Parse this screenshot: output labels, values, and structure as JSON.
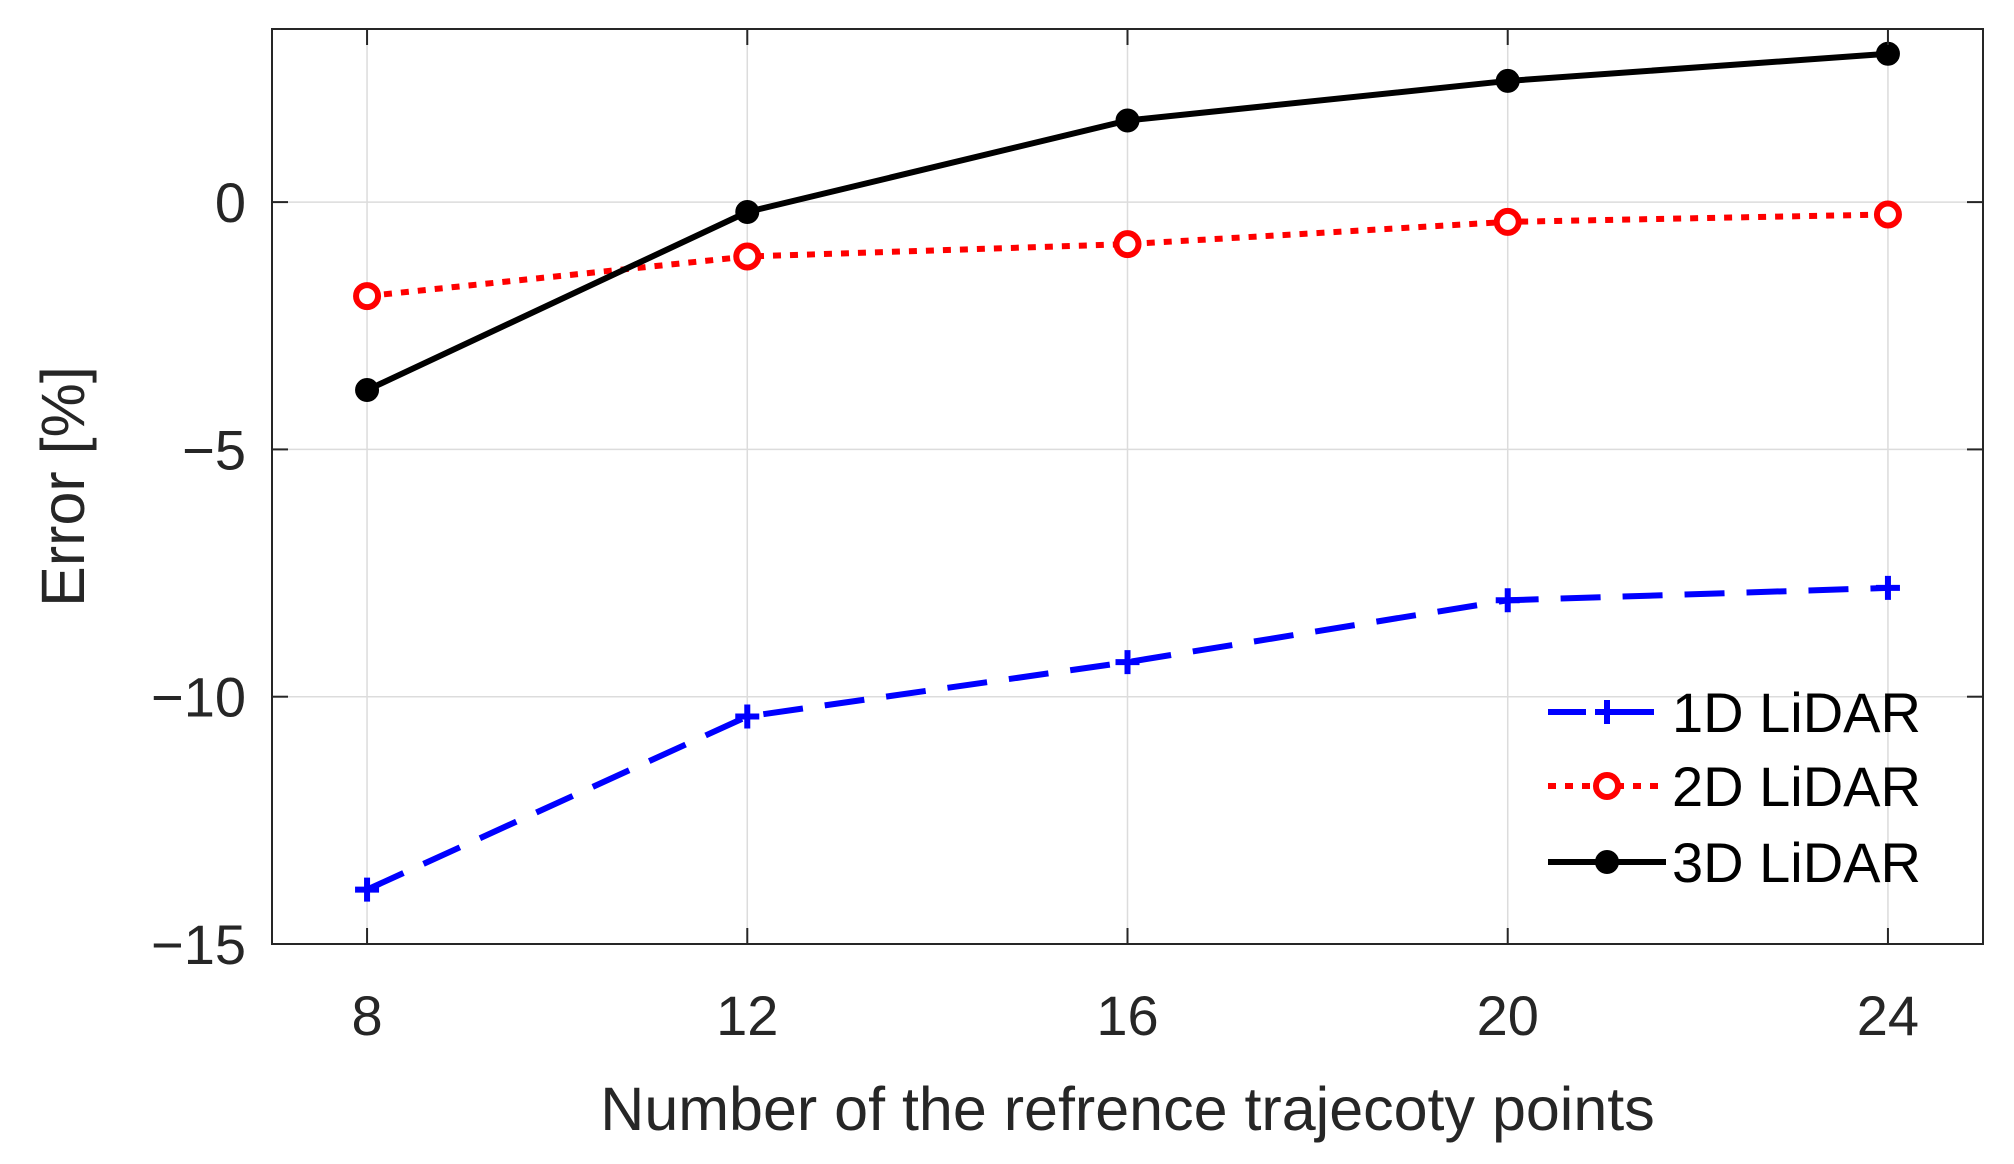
{
  "chart_data": {
    "type": "line",
    "title": "",
    "xlabel": "Number of the refrence trajecoty points",
    "ylabel": "Error [%]",
    "x": [
      8,
      12,
      16,
      20,
      24
    ],
    "xlim": [
      7,
      25
    ],
    "ylim": [
      -15,
      3.5
    ],
    "xticks": [
      8,
      12,
      16,
      20,
      24
    ],
    "yticks": [
      -15,
      -10,
      -5,
      0
    ],
    "xtick_labels": [
      "8",
      "12",
      "16",
      "20",
      "24"
    ],
    "ytick_labels": [
      "−15",
      "−10",
      "−5",
      "0"
    ],
    "grid": true,
    "legend_position": "bottom-right",
    "series": [
      {
        "name": "1D LiDAR",
        "color": "#0000ff",
        "line_style": "dashed",
        "marker": "plus",
        "values": [
          -13.9,
          -10.4,
          -9.3,
          -8.05,
          -7.8
        ]
      },
      {
        "name": "2D LiDAR",
        "color": "#ff0000",
        "line_style": "dotted",
        "marker": "circle-open",
        "values": [
          -1.9,
          -1.1,
          -0.85,
          -0.4,
          -0.25
        ]
      },
      {
        "name": "3D LiDAR",
        "color": "#000000",
        "line_style": "solid",
        "marker": "circle-filled",
        "values": [
          -3.8,
          -0.2,
          1.65,
          2.45,
          3.0
        ]
      }
    ]
  }
}
